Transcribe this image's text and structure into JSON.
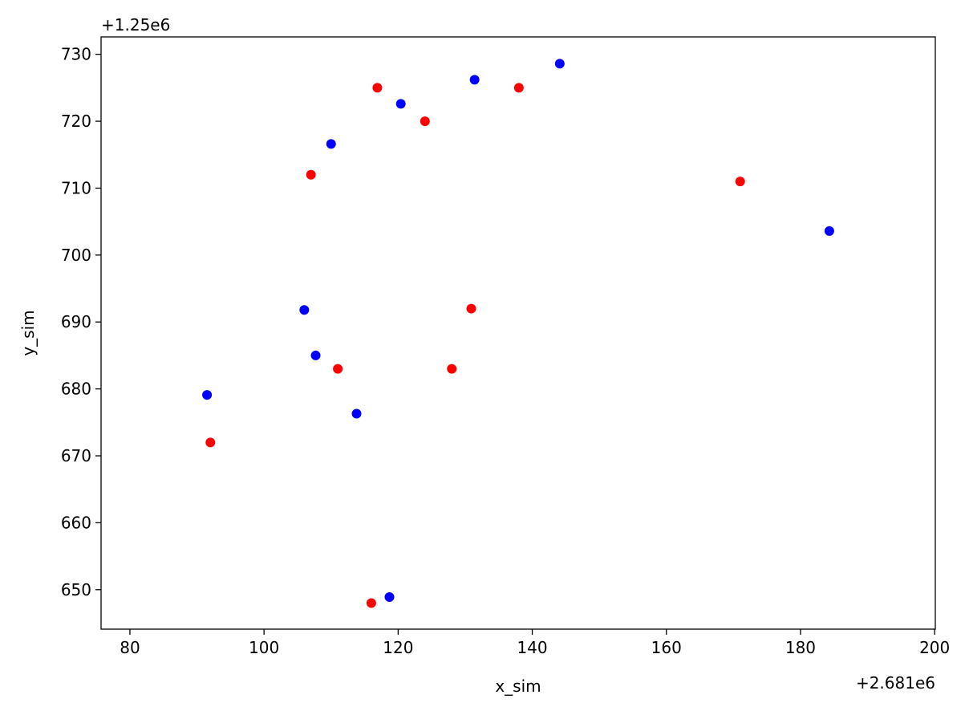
{
  "chart_data": {
    "type": "scatter",
    "xlabel": "x_sim",
    "ylabel": "y_sim",
    "x_offset_label": "+2.681e6",
    "y_offset_label": "+1.25e6",
    "xlim": [
      75.7,
      200.1
    ],
    "ylim": [
      644.1,
      732.6
    ],
    "xticks": [
      80,
      100,
      120,
      140,
      160,
      180,
      200
    ],
    "yticks": [
      650,
      660,
      670,
      680,
      690,
      700,
      710,
      720,
      730
    ],
    "grid": false,
    "series": [
      {
        "color": "#0000ff",
        "x": [
          144.1,
          131.4,
          120.4,
          110.0,
          184.3,
          106.0,
          107.7,
          91.5,
          113.8,
          118.7
        ],
        "y": [
          728.6,
          726.2,
          722.6,
          716.6,
          703.6,
          691.8,
          685.0,
          679.1,
          676.3,
          648.9
        ]
      },
      {
        "color": "#ff0000",
        "x": [
          116.9,
          124.0,
          138.0,
          107.0,
          171.0,
          130.9,
          111.0,
          128.0,
          92.0,
          116.0
        ],
        "y": [
          725.0,
          720.0,
          725.0,
          712.0,
          711.0,
          692.0,
          683.0,
          683.0,
          672.0,
          648.0
        ]
      }
    ]
  }
}
